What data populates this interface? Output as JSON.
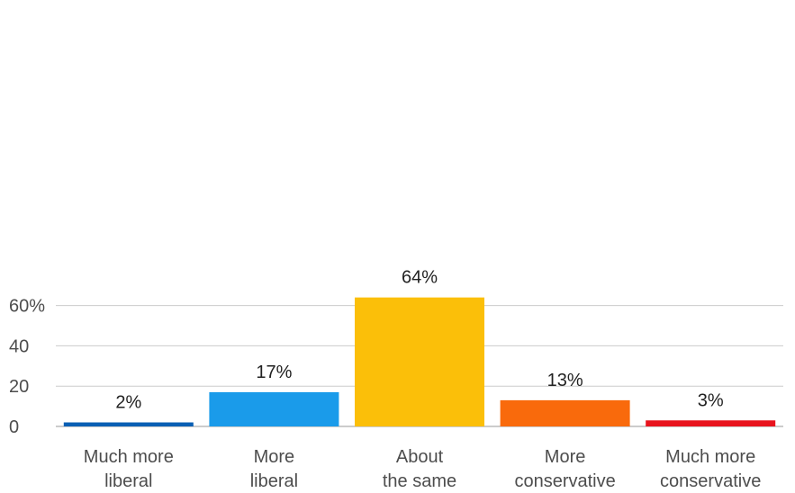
{
  "chart_data": {
    "type": "bar",
    "title": "",
    "xlabel": "",
    "ylabel": "",
    "categories": [
      [
        "Much more",
        "liberal"
      ],
      [
        "More",
        "liberal"
      ],
      [
        "About",
        "the same"
      ],
      [
        "More",
        "conservative"
      ],
      [
        "Much more",
        "conservative"
      ]
    ],
    "values": [
      2,
      17,
      64,
      13,
      3
    ],
    "data_labels": [
      "2%",
      "17%",
      "64%",
      "13%",
      "3%"
    ],
    "colors": [
      "#0a5fb4",
      "#1a9bea",
      "#fbbf09",
      "#f96a0c",
      "#e8131d"
    ],
    "yticks": [
      {
        "value": 0,
        "label": "0"
      },
      {
        "value": 20,
        "label": "20"
      },
      {
        "value": 40,
        "label": "40"
      },
      {
        "value": 60,
        "label": "60%"
      }
    ],
    "ylim": [
      0,
      70
    ],
    "grid": true,
    "legend": "none"
  }
}
